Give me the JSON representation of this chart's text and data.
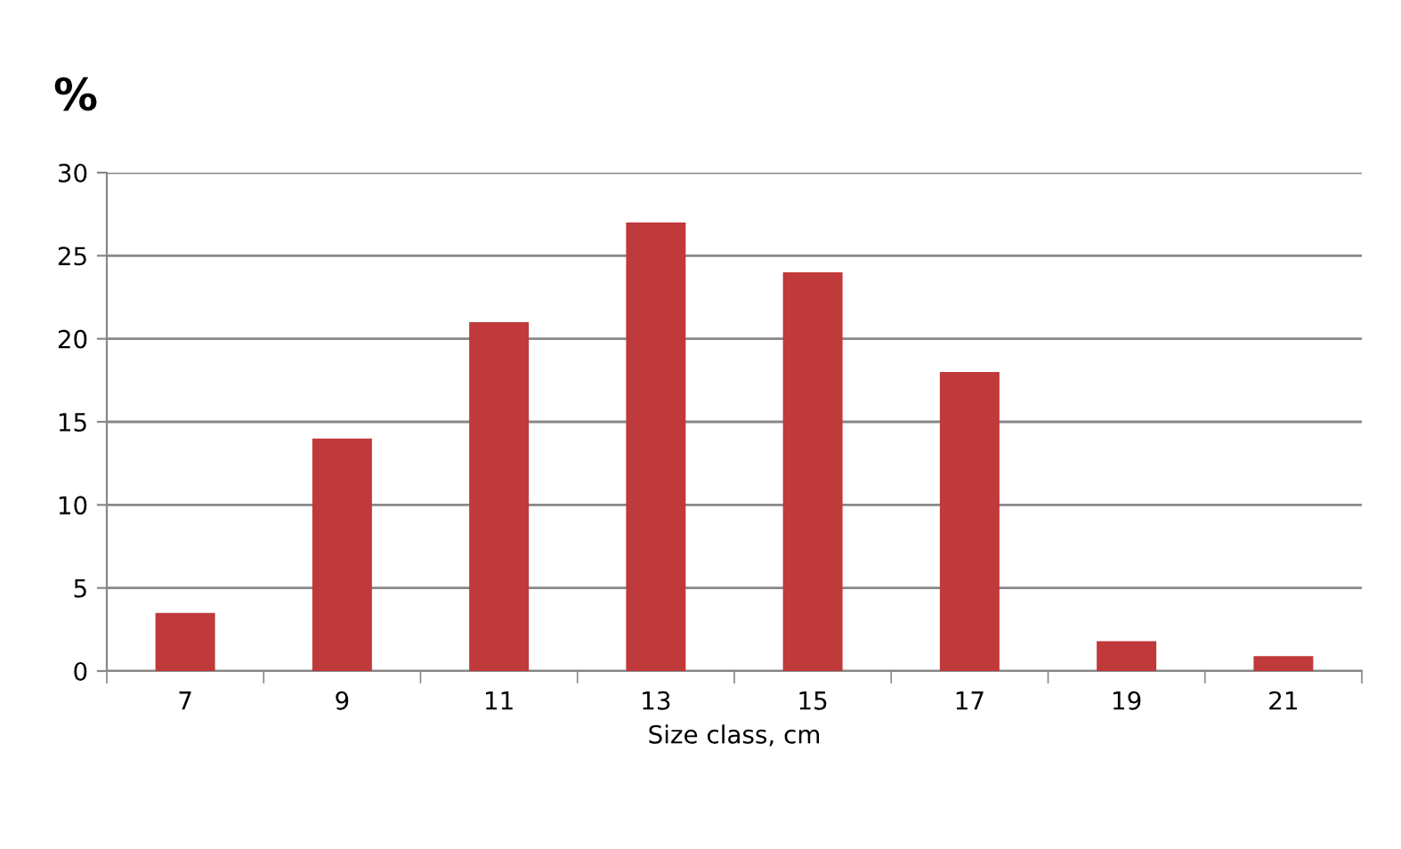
{
  "chart_data": {
    "type": "bar",
    "ylabel": "%",
    "xlabel": "Size class, cm",
    "categories": [
      "7",
      "9",
      "11",
      "13",
      "15",
      "17",
      "19",
      "21"
    ],
    "values": [
      3.5,
      14,
      21,
      27,
      24,
      18,
      1.8,
      0.9
    ],
    "color": "#c0393b",
    "ylim": [
      0,
      30
    ],
    "yticks": [
      0,
      5,
      10,
      15,
      20,
      25,
      30
    ],
    "grid": "y",
    "legend": false
  }
}
